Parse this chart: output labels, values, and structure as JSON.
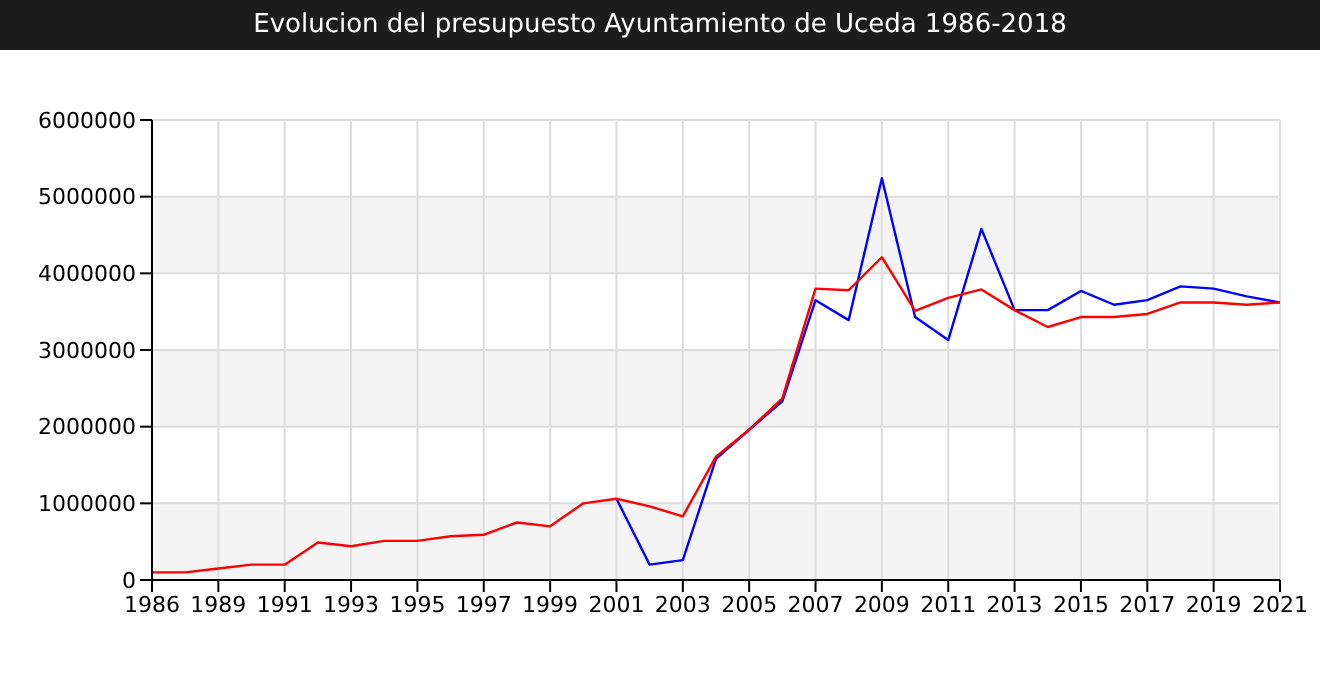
{
  "chart_data": {
    "type": "line",
    "title": "Evolucion del presupuesto Ayuntamiento de Uceda 1986-2018",
    "categories": [
      "1986",
      null,
      "1989",
      null,
      "1991",
      null,
      "1993",
      null,
      "1995",
      null,
      "1997",
      null,
      "1999",
      null,
      "2001",
      null,
      "2003",
      null,
      "2005",
      null,
      "2007",
      null,
      "2009",
      null,
      "2011",
      null,
      "2013",
      null,
      "2015",
      null,
      "2017",
      null,
      "2019",
      null,
      "2021"
    ],
    "series": [
      {
        "color": "#0000ff",
        "values": [
          null,
          null,
          null,
          null,
          null,
          null,
          null,
          null,
          null,
          null,
          null,
          null,
          null,
          null,
          1060000,
          200000,
          260000,
          1580000,
          1960000,
          2330000,
          3650000,
          3390000,
          5240000,
          3430000,
          3130000,
          4580000,
          3520000,
          3520000,
          3770000,
          3590000,
          3650000,
          3830000,
          3800000,
          3700000,
          3620000
        ]
      },
      {
        "color": "#ff0000",
        "values": [
          100000,
          100000,
          150000,
          200000,
          200000,
          490000,
          440000,
          510000,
          510000,
          570000,
          590000,
          750000,
          700000,
          1000000,
          1060000,
          960000,
          830000,
          1610000,
          1960000,
          2370000,
          3800000,
          3780000,
          4210000,
          3510000,
          3680000,
          3790000,
          3520000,
          3300000,
          3430000,
          3430000,
          3470000,
          3620000,
          3620000,
          3590000,
          3620000
        ]
      }
    ],
    "ylim": [
      0,
      6000000
    ],
    "yticks": [
      0,
      1000000,
      2000000,
      3000000,
      4000000,
      5000000,
      6000000
    ],
    "grid": true,
    "legend": false,
    "marker": "none",
    "line_style": "solid"
  }
}
